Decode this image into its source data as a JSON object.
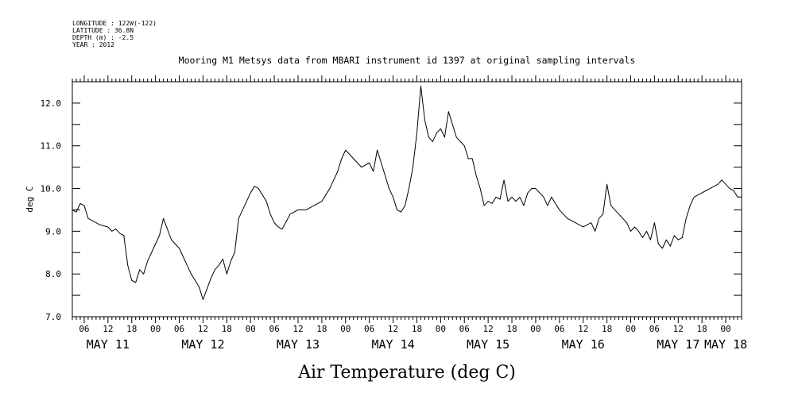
{
  "metadata": {
    "longitude": "LONGITUDE : 122W(-122)",
    "latitude": "LATITUDE : 36.8N",
    "depth": "DEPTH (m) : -2.5",
    "year": "YEAR : 2012"
  },
  "chart_data": {
    "type": "line",
    "title": "Mooring M1 Metsys data from MBARI instrument id 1397 at original sampling intervals",
    "xlabel": "Air Temperature (deg C)",
    "ylabel": "deg C",
    "ylim": [
      7.0,
      12.5
    ],
    "y_ticks": [
      7.0,
      8.0,
      9.0,
      10.0,
      11.0,
      12.0
    ],
    "y_tick_labels": [
      "7.0",
      "8.0",
      "9.0",
      "10.0",
      "11.0",
      "12.0"
    ],
    "x_start": "2012-05-11 03:00",
    "x_end": "2012-05-18 04:00",
    "x_hour_tick_labels": [
      "06",
      "12",
      "18",
      "00",
      "06",
      "12",
      "18",
      "00",
      "06",
      "12",
      "18",
      "00",
      "06",
      "12",
      "18",
      "00",
      "06",
      "12",
      "18",
      "00",
      "06",
      "12",
      "18",
      "00",
      "06",
      "12",
      "18",
      "00"
    ],
    "x_day_labels": [
      "MAY 11",
      "MAY 12",
      "MAY 13",
      "MAY 14",
      "MAY 15",
      "MAY 16",
      "MAY 17",
      "MAY 18"
    ],
    "grid": false,
    "series": [
      {
        "x": [
          "2012-05-11 03:00",
          "2012-05-11 04:00",
          "2012-05-11 05:00",
          "2012-05-11 06:00",
          "2012-05-11 07:00",
          "2012-05-11 08:00",
          "2012-05-11 10:00",
          "2012-05-11 12:00",
          "2012-05-11 13:00",
          "2012-05-11 14:00",
          "2012-05-11 15:00",
          "2012-05-11 16:00",
          "2012-05-11 17:00",
          "2012-05-11 18:00",
          "2012-05-11 19:00",
          "2012-05-11 20:00",
          "2012-05-11 21:00",
          "2012-05-11 22:00",
          "2012-05-11 23:00",
          "2012-05-12 00:00",
          "2012-05-12 01:00",
          "2012-05-12 02:00",
          "2012-05-12 04:00",
          "2012-05-12 06:00",
          "2012-05-12 08:00",
          "2012-05-12 09:00",
          "2012-05-12 10:00",
          "2012-05-12 11:00",
          "2012-05-12 12:00",
          "2012-05-12 14:00",
          "2012-05-12 15:00",
          "2012-05-12 16:00",
          "2012-05-12 17:00",
          "2012-05-12 18:00",
          "2012-05-12 19:00",
          "2012-05-12 20:00",
          "2012-05-12 21:00",
          "2012-05-12 22:00",
          "2012-05-13 00:00",
          "2012-05-13 01:00",
          "2012-05-13 02:00",
          "2012-05-13 03:00",
          "2012-05-13 04:00",
          "2012-05-13 05:00",
          "2012-05-13 06:00",
          "2012-05-13 07:00",
          "2012-05-13 08:00",
          "2012-05-13 10:00",
          "2012-05-13 12:00",
          "2012-05-13 14:00",
          "2012-05-13 16:00",
          "2012-05-13 18:00",
          "2012-05-13 20:00",
          "2012-05-13 22:00",
          "2012-05-13 23:00",
          "2012-05-14 00:00",
          "2012-05-14 02:00",
          "2012-05-14 04:00",
          "2012-05-14 06:00",
          "2012-05-14 07:00",
          "2012-05-14 08:00",
          "2012-05-14 09:00",
          "2012-05-14 10:00",
          "2012-05-14 11:00",
          "2012-05-14 12:00",
          "2012-05-14 13:00",
          "2012-05-14 14:00",
          "2012-05-14 15:00",
          "2012-05-14 16:00",
          "2012-05-14 17:00",
          "2012-05-14 18:00",
          "2012-05-14 19:00",
          "2012-05-14 20:00",
          "2012-05-14 21:00",
          "2012-05-14 22:00",
          "2012-05-14 23:00",
          "2012-05-15 00:00",
          "2012-05-15 01:00",
          "2012-05-15 02:00",
          "2012-05-15 03:00",
          "2012-05-15 04:00",
          "2012-05-15 06:00",
          "2012-05-15 07:00",
          "2012-05-15 08:00",
          "2012-05-15 09:00",
          "2012-05-15 10:00",
          "2012-05-15 11:00",
          "2012-05-15 12:00",
          "2012-05-15 13:00",
          "2012-05-15 14:00",
          "2012-05-15 15:00",
          "2012-05-15 16:00",
          "2012-05-15 17:00",
          "2012-05-15 18:00",
          "2012-05-15 19:00",
          "2012-05-15 20:00",
          "2012-05-15 21:00",
          "2012-05-15 22:00",
          "2012-05-15 23:00",
          "2012-05-16 00:00",
          "2012-05-16 01:00",
          "2012-05-16 02:00",
          "2012-05-16 03:00",
          "2012-05-16 04:00",
          "2012-05-16 06:00",
          "2012-05-16 08:00",
          "2012-05-16 10:00",
          "2012-05-16 12:00",
          "2012-05-16 14:00",
          "2012-05-16 15:00",
          "2012-05-16 16:00",
          "2012-05-16 17:00",
          "2012-05-16 18:00",
          "2012-05-16 19:00",
          "2012-05-16 20:00",
          "2012-05-16 21:00",
          "2012-05-16 22:00",
          "2012-05-16 23:00",
          "2012-05-17 00:00",
          "2012-05-17 01:00",
          "2012-05-17 02:00",
          "2012-05-17 03:00",
          "2012-05-17 04:00",
          "2012-05-17 05:00",
          "2012-05-17 06:00",
          "2012-05-17 07:00",
          "2012-05-17 08:00",
          "2012-05-17 09:00",
          "2012-05-17 10:00",
          "2012-05-17 11:00",
          "2012-05-17 12:00",
          "2012-05-17 13:00",
          "2012-05-17 14:00",
          "2012-05-17 15:00",
          "2012-05-17 16:00",
          "2012-05-17 18:00",
          "2012-05-17 20:00",
          "2012-05-17 22:00",
          "2012-05-17 23:00",
          "2012-05-18 00:00",
          "2012-05-18 01:00",
          "2012-05-18 02:00",
          "2012-05-18 03:00",
          "2012-05-18 04:00"
        ],
        "y": [
          9.5,
          9.45,
          9.65,
          9.6,
          9.3,
          9.25,
          9.15,
          9.1,
          9.0,
          9.05,
          8.95,
          8.9,
          8.2,
          7.85,
          7.8,
          8.1,
          8.0,
          8.3,
          8.5,
          8.7,
          8.9,
          9.3,
          8.8,
          8.6,
          8.2,
          8.0,
          7.85,
          7.7,
          7.4,
          7.9,
          8.1,
          8.2,
          8.35,
          8.0,
          8.3,
          8.5,
          9.3,
          9.5,
          9.9,
          10.05,
          10.0,
          9.85,
          9.7,
          9.4,
          9.2,
          9.1,
          9.05,
          9.4,
          9.5,
          9.5,
          9.6,
          9.7,
          10.0,
          10.4,
          10.7,
          10.9,
          10.7,
          10.5,
          10.6,
          10.4,
          10.9,
          10.6,
          10.3,
          10.0,
          9.8,
          9.5,
          9.45,
          9.6,
          10.0,
          10.5,
          11.3,
          12.4,
          11.6,
          11.2,
          11.1,
          11.3,
          11.4,
          11.2,
          11.8,
          11.5,
          11.2,
          11.0,
          10.7,
          10.7,
          10.3,
          10.0,
          9.6,
          9.7,
          9.65,
          9.8,
          9.75,
          10.2,
          9.7,
          9.8,
          9.7,
          9.8,
          9.6,
          9.9,
          10.0,
          10.0,
          9.9,
          9.8,
          9.6,
          9.8,
          9.5,
          9.3,
          9.2,
          9.1,
          9.2,
          9.0,
          9.3,
          9.4,
          10.1,
          9.6,
          9.5,
          9.4,
          9.3,
          9.2,
          9.0,
          9.1,
          9.0,
          8.85,
          9.0,
          8.8,
          9.2,
          8.7,
          8.6,
          8.8,
          8.65,
          8.9,
          8.8,
          8.85,
          9.3,
          9.6,
          9.8,
          9.9,
          10.0,
          10.1,
          10.2,
          10.1,
          10.0,
          9.95,
          9.8,
          9.8
        ]
      }
    ]
  }
}
